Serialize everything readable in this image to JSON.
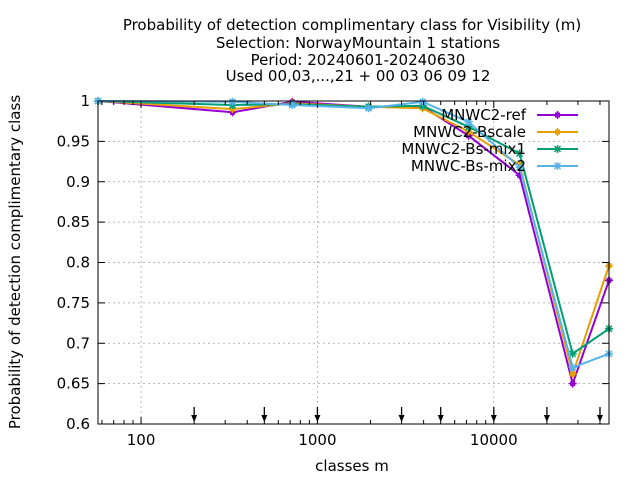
{
  "chart_data": {
    "type": "line",
    "title_lines": [
      "Probability of detection complimentary class  for Visibility (m)",
      "Selection: NorwayMountain      1 stations",
      "Period: 20240601-20240630",
      "Used 00,03,...,21 + 00 03 06 09 12"
    ],
    "xlabel": "classes m",
    "ylabel": "Probability of detection complimentary class",
    "x_scale": "log",
    "xlim": [
      57,
      45000
    ],
    "ylim": [
      0.6,
      1.0
    ],
    "x_ticks": [
      100,
      1000,
      10000
    ],
    "x_tick_labels": [
      "100",
      "1000",
      "10000"
    ],
    "y_ticks": [
      0.6,
      0.65,
      0.7,
      0.75,
      0.8,
      0.85,
      0.9,
      0.95,
      1.0
    ],
    "y_tick_labels": [
      "0.6",
      "0.65",
      "0.7",
      "0.75",
      "0.8",
      "0.85",
      "0.9",
      "0.95",
      "1"
    ],
    "grid": true,
    "legend_position": "top-right",
    "threshold_arrows_x": [
      200,
      500,
      1000,
      3000,
      5000,
      10000,
      20000,
      40000
    ],
    "x": [
      57,
      330,
      720,
      1950,
      3950,
      7200,
      14000,
      28000,
      45000
    ],
    "series": [
      {
        "name": "MNWC2-ref",
        "color": "#9400d3",
        "marker": "plus",
        "values": [
          1.0,
          0.986,
          0.999,
          0.993,
          0.993,
          0.957,
          0.908,
          0.65,
          0.778
        ]
      },
      {
        "name": "MNWC2-Bscale",
        "color": "#e69f00",
        "marker": "plus",
        "values": [
          1.0,
          0.99,
          0.997,
          0.993,
          0.991,
          0.962,
          0.921,
          0.662,
          0.796
        ]
      },
      {
        "name": "MNWC2-Bs-mix1",
        "color": "#009e73",
        "marker": "star",
        "values": [
          1.0,
          0.995,
          0.996,
          0.993,
          0.994,
          0.968,
          0.935,
          0.687,
          0.718
        ]
      },
      {
        "name": "MNWC-Bs-mix2",
        "color": "#56b4e9",
        "marker": "star",
        "values": [
          1.0,
          0.999,
          0.995,
          0.991,
          0.999,
          0.974,
          0.918,
          0.67,
          0.687
        ]
      }
    ]
  }
}
